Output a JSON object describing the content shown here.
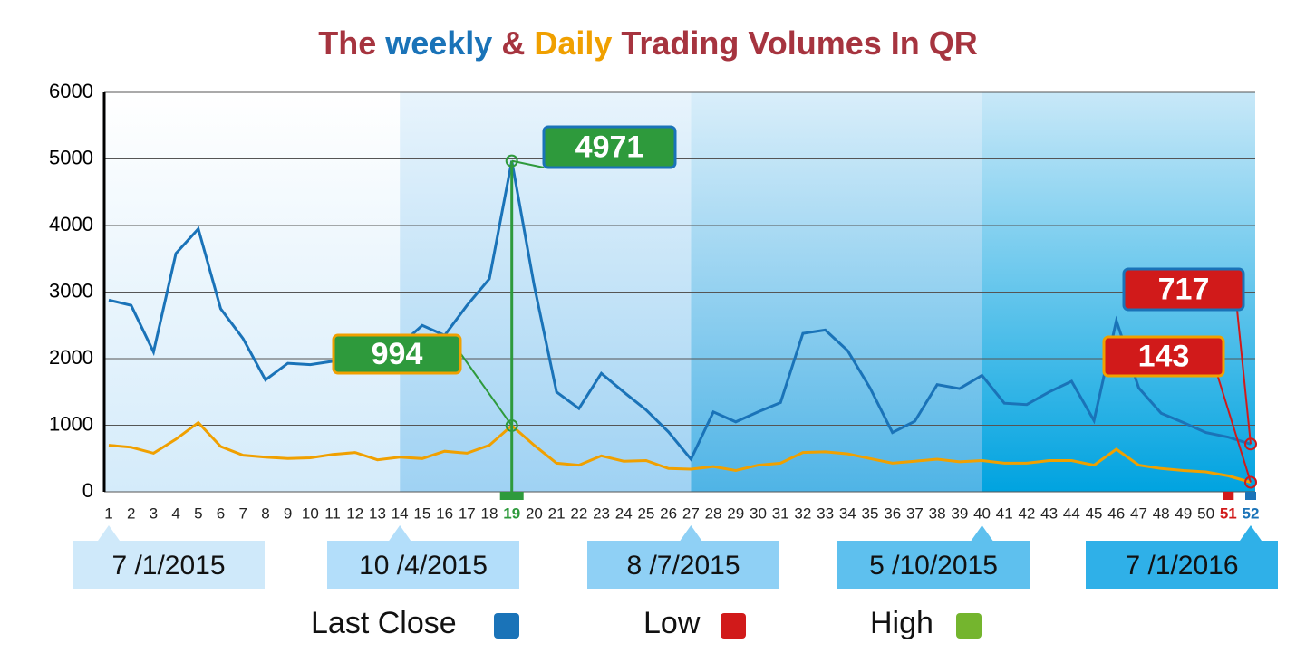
{
  "chart_data": {
    "type": "line",
    "title": [
      "The ",
      "weekly",
      " & ",
      "Daily",
      " Trading Volumes In QR"
    ],
    "title_colors": [
      "#a6343f",
      "#1a73b8",
      "#a6343f",
      "#f0a000",
      "#a6343f"
    ],
    "categories": [
      1,
      2,
      3,
      4,
      5,
      6,
      7,
      8,
      9,
      10,
      11,
      12,
      13,
      14,
      15,
      16,
      17,
      18,
      19,
      20,
      21,
      22,
      23,
      24,
      25,
      26,
      27,
      28,
      29,
      30,
      31,
      32,
      33,
      34,
      35,
      36,
      37,
      38,
      39,
      40,
      41,
      42,
      43,
      44,
      45,
      46,
      47,
      48,
      49,
      50,
      51,
      52
    ],
    "series": [
      {
        "color": "#1a73b8",
        "values": [
          2880,
          2800,
          2100,
          3580,
          3950,
          2750,
          2300,
          1680,
          1930,
          1910,
          1960,
          2050,
          2150,
          2200,
          2500,
          2350,
          2800,
          3200,
          4971,
          3100,
          1500,
          1250,
          1780,
          1500,
          1230,
          900,
          490,
          1200,
          1050,
          1200,
          1340,
          2380,
          2430,
          2120,
          1560,
          890,
          1060,
          1610,
          1550,
          1750,
          1330,
          1310,
          1500,
          1660,
          1070,
          2570,
          1560,
          1180,
          1040,
          890,
          820,
          717
        ]
      },
      {
        "color": "#f0a000",
        "values": [
          700,
          670,
          580,
          790,
          1040,
          680,
          550,
          520,
          500,
          510,
          560,
          590,
          480,
          520,
          500,
          610,
          580,
          700,
          994,
          700,
          430,
          400,
          540,
          460,
          470,
          350,
          340,
          380,
          320,
          400,
          430,
          590,
          600,
          570,
          500,
          430,
          460,
          490,
          450,
          470,
          430,
          430,
          470,
          470,
          400,
          640,
          400,
          350,
          320,
          300,
          240,
          143
        ]
      }
    ],
    "ylim": [
      0,
      6000
    ],
    "yticks": [
      0,
      1000,
      2000,
      3000,
      4000,
      5000,
      6000
    ],
    "grid": true,
    "category_colors": {
      "18": "#2e9a3c",
      "50": "#d11a1a",
      "51": "#1a73b8"
    },
    "annotations": [
      {
        "label": "4971",
        "series": 0,
        "index": 18,
        "fill": "#2e9a3c",
        "border": "#1a73b8"
      },
      {
        "label": "994",
        "series": 1,
        "index": 18,
        "fill": "#2e9a3c",
        "border": "#f0a000"
      },
      {
        "label": "717",
        "series": 0,
        "index": 51,
        "fill": "#d11a1a",
        "border": "#1a73b8"
      },
      {
        "label": "143",
        "series": 1,
        "index": 51,
        "fill": "#d11a1a",
        "border": "#f0a000"
      }
    ],
    "date_labels": [
      {
        "label": "7 /1/2015",
        "index": 0,
        "color": "#cfe9fa"
      },
      {
        "label": "10 /4/2015",
        "index": 13,
        "color": "#b3defa"
      },
      {
        "label": "8 /7/2015",
        "index": 26,
        "color": "#8fd0f5"
      },
      {
        "label": "5 /10/2015",
        "index": 39,
        "color": "#5ec0ee"
      },
      {
        "label": "7 /1/2016",
        "index": 51,
        "color": "#2fb0e8"
      }
    ],
    "legend": [
      {
        "name": "Last Close",
        "color": "#1a73b8"
      },
      {
        "name": "Low",
        "color": "#d11a1a"
      },
      {
        "name": "High",
        "color": "#74b52e"
      }
    ]
  }
}
